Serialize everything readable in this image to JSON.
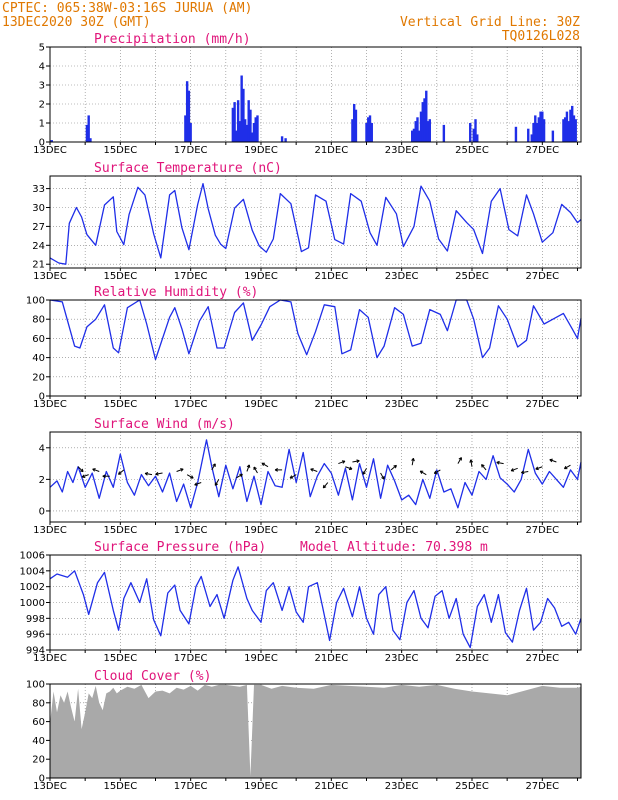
{
  "header": {
    "line1": "CPTEC:  065:38W-03:16S  JURUA (AM)",
    "line2": "13DEC2020 30Z (GMT)",
    "right1": "Vertical Grid Line: 30Z",
    "right2": "TQ0126L028"
  },
  "colors": {
    "header": "#e07800",
    "title": "#e0147a",
    "line": "#1f2ee8",
    "cloud": "#a9a9a9",
    "grid": "#7f7f7f"
  },
  "chart_data": [
    {
      "type": "bar",
      "title": "Precipitation (mm/h)",
      "ylim": [
        0,
        5
      ],
      "yticks": [
        "0",
        "1",
        "2",
        "3",
        "4",
        "5"
      ],
      "xticks": [
        "13DEC",
        "15DEC",
        "17DEC",
        "19DEC",
        "21DEC",
        "23DEC",
        "25DEC",
        "27DEC"
      ],
      "x_start_day": 13,
      "x_end_day": 28.1,
      "x": [
        13.05,
        14.05,
        14.1,
        14.15,
        16.85,
        16.9,
        16.95,
        17.0,
        18.2,
        18.25,
        18.3,
        18.35,
        18.4,
        18.45,
        18.5,
        18.55,
        18.6,
        18.65,
        18.7,
        18.75,
        18.8,
        18.85,
        18.9,
        19.6,
        19.7,
        21.6,
        21.65,
        21.7,
        22.0,
        22.05,
        22.1,
        22.15,
        23.3,
        23.35,
        23.4,
        23.45,
        23.5,
        23.55,
        23.6,
        23.65,
        23.7,
        23.75,
        23.8,
        24.2,
        24.95,
        25.05,
        25.1,
        25.15,
        26.25,
        26.6,
        26.7,
        26.75,
        26.8,
        26.85,
        26.9,
        26.95,
        27.0,
        27.05,
        27.3,
        27.6,
        27.65,
        27.7,
        27.75,
        27.8,
        27.85,
        27.9,
        27.95
      ],
      "values": [
        0.1,
        0.9,
        1.4,
        0.2,
        1.4,
        3.2,
        2.7,
        1.0,
        1.8,
        2.1,
        0.6,
        2.2,
        1.1,
        3.5,
        2.8,
        1.2,
        0.9,
        2.2,
        1.7,
        0.5,
        1.0,
        1.3,
        1.4,
        0.3,
        0.2,
        1.2,
        2.0,
        1.7,
        1.0,
        1.3,
        1.4,
        1.0,
        0.6,
        0.7,
        1.1,
        1.3,
        0.6,
        1.6,
        2.1,
        2.3,
        2.7,
        1.1,
        1.2,
        0.9,
        1.0,
        0.7,
        1.2,
        0.4,
        0.8,
        0.7,
        0.4,
        1.0,
        1.4,
        1.0,
        1.3,
        1.6,
        1.6,
        1.2,
        0.6,
        1.2,
        1.3,
        1.6,
        1.1,
        1.7,
        1.9,
        1.4,
        1.2
      ]
    },
    {
      "type": "line",
      "title": "Surface Temperature (nC)",
      "ylim": [
        20.4,
        35
      ],
      "yticks": [
        "21",
        "24",
        "27",
        "30",
        "33"
      ],
      "xticks": [
        "13DEC",
        "15DEC",
        "17DEC",
        "19DEC",
        "21DEC",
        "23DEC",
        "25DEC",
        "27DEC"
      ],
      "x_start_day": 13,
      "x_end_day": 28.1,
      "x": [
        13.0,
        13.25,
        13.45,
        13.55,
        13.75,
        13.9,
        14.05,
        14.3,
        14.55,
        14.8,
        14.9,
        15.1,
        15.25,
        15.5,
        15.7,
        15.95,
        16.15,
        16.4,
        16.55,
        16.75,
        16.95,
        17.2,
        17.35,
        17.5,
        17.7,
        17.85,
        18.0,
        18.25,
        18.5,
        18.75,
        18.95,
        19.15,
        19.35,
        19.55,
        19.85,
        20.15,
        20.35,
        20.55,
        20.85,
        21.1,
        21.35,
        21.55,
        21.85,
        22.1,
        22.3,
        22.55,
        22.85,
        23.05,
        23.35,
        23.55,
        23.8,
        24.05,
        24.3,
        24.55,
        24.85,
        25.05,
        25.3,
        25.55,
        25.8,
        26.05,
        26.3,
        26.55,
        26.75,
        27.0,
        27.3,
        27.55,
        27.8,
        28.0,
        28.1
      ],
      "values": [
        22.0,
        21.2,
        21.0,
        27.5,
        30.0,
        28.5,
        25.7,
        24.0,
        30.4,
        31.7,
        26.2,
        24.1,
        28.9,
        33.2,
        32.0,
        25.8,
        22.0,
        32.0,
        32.7,
        26.8,
        23.3,
        30.5,
        33.8,
        29.8,
        25.6,
        24.2,
        23.5,
        29.9,
        31.3,
        26.4,
        23.9,
        22.9,
        25.0,
        32.2,
        30.6,
        23.0,
        23.6,
        32.0,
        31.0,
        24.9,
        24.2,
        32.2,
        31.0,
        26.0,
        24.0,
        31.6,
        29.0,
        23.8,
        27.0,
        33.4,
        31.0,
        25.0,
        23.1,
        29.5,
        27.6,
        26.5,
        22.7,
        31.0,
        33.0,
        26.5,
        25.5,
        32.0,
        29.0,
        24.5,
        26.0,
        30.5,
        29.2,
        27.6,
        28.1
      ]
    },
    {
      "type": "line",
      "title": "Relative Humidity (%)",
      "ylim": [
        0,
        100
      ],
      "yticks": [
        "0",
        "20",
        "40",
        "60",
        "80",
        "100"
      ],
      "xticks": [
        "13DEC",
        "15DEC",
        "17DEC",
        "19DEC",
        "21DEC",
        "23DEC",
        "25DEC",
        "27DEC"
      ],
      "x_start_day": 13,
      "x_end_day": 28.1,
      "x": [
        13.0,
        13.35,
        13.7,
        13.85,
        14.05,
        14.3,
        14.55,
        14.8,
        14.95,
        15.2,
        15.55,
        15.75,
        16.0,
        16.4,
        16.55,
        16.75,
        16.95,
        17.25,
        17.5,
        17.75,
        17.95,
        18.25,
        18.5,
        18.75,
        19.0,
        19.25,
        19.55,
        19.85,
        20.05,
        20.3,
        20.55,
        20.8,
        21.1,
        21.3,
        21.55,
        21.8,
        22.05,
        22.3,
        22.5,
        22.8,
        23.05,
        23.3,
        23.55,
        23.8,
        24.1,
        24.3,
        24.55,
        24.85,
        25.05,
        25.3,
        25.5,
        25.75,
        26.0,
        26.3,
        26.55,
        26.75,
        27.05,
        27.3,
        27.6,
        27.85,
        28.0,
        28.1
      ],
      "values": [
        100,
        98,
        52,
        50,
        72,
        80,
        95,
        50,
        45,
        92,
        100,
        75,
        38,
        82,
        92,
        70,
        44,
        78,
        93,
        50,
        50,
        87,
        97,
        58,
        74,
        93,
        100,
        98,
        65,
        43,
        67,
        95,
        93,
        44,
        48,
        90,
        82,
        40,
        52,
        92,
        85,
        52,
        55,
        90,
        85,
        68,
        100,
        100,
        80,
        40,
        50,
        94,
        80,
        51,
        58,
        94,
        75,
        80,
        86,
        70,
        60,
        81
      ]
    },
    {
      "type": "line",
      "title": "Surface Wind (m/s)",
      "ylim": [
        -0.7,
        5
      ],
      "yticks": [
        "0",
        "2",
        "4"
      ],
      "xticks": [
        "13DEC",
        "15DEC",
        "17DEC",
        "19DEC",
        "21DEC",
        "23DEC",
        "25DEC",
        "27DEC"
      ],
      "x_start_day": 13,
      "x_end_day": 28.1,
      "x": [
        13.0,
        13.2,
        13.35,
        13.5,
        13.65,
        13.8,
        14.0,
        14.2,
        14.4,
        14.6,
        14.8,
        15.0,
        15.2,
        15.4,
        15.6,
        15.8,
        16.0,
        16.2,
        16.4,
        16.6,
        16.8,
        17.0,
        17.2,
        17.45,
        17.6,
        17.8,
        18.0,
        18.2,
        18.4,
        18.6,
        18.8,
        19.0,
        19.2,
        19.4,
        19.6,
        19.8,
        20.0,
        20.2,
        20.4,
        20.6,
        20.8,
        21.0,
        21.2,
        21.4,
        21.6,
        21.8,
        22.0,
        22.2,
        22.4,
        22.6,
        22.8,
        23.0,
        23.2,
        23.4,
        23.6,
        23.8,
        24.0,
        24.2,
        24.4,
        24.6,
        24.8,
        25.0,
        25.2,
        25.4,
        25.6,
        25.8,
        26.0,
        26.2,
        26.4,
        26.6,
        26.8,
        27.0,
        27.2,
        27.4,
        27.6,
        27.8,
        28.0,
        28.1
      ],
      "values": [
        1.5,
        1.9,
        1.2,
        2.5,
        1.8,
        2.8,
        1.5,
        2.4,
        0.8,
        2.5,
        1.5,
        3.6,
        1.8,
        1.0,
        2.3,
        1.6,
        2.2,
        1.2,
        2.4,
        0.6,
        1.7,
        0.2,
        1.8,
        4.5,
        2.8,
        0.9,
        2.9,
        1.4,
        2.8,
        0.6,
        2.2,
        0.4,
        2.5,
        1.6,
        1.5,
        3.9,
        1.8,
        3.7,
        0.9,
        2.2,
        3.0,
        2.4,
        1.0,
        2.7,
        0.7,
        3.0,
        1.5,
        3.3,
        0.8,
        2.9,
        1.9,
        0.7,
        1.0,
        0.4,
        2.0,
        0.8,
        2.6,
        1.2,
        1.4,
        0.2,
        1.8,
        1.0,
        2.5,
        2.0,
        3.5,
        2.1,
        1.7,
        1.2,
        2.0,
        3.9,
        2.4,
        1.7,
        2.5,
        2.0,
        1.5,
        2.6,
        2.0,
        3.1
      ]
    },
    {
      "type": "line",
      "title": "Surface Pressure (hPa)",
      "annotation": "Model Altitude: 70.398 m",
      "ylim": [
        994,
        1006
      ],
      "yticks": [
        "994",
        "996",
        "998",
        "1000",
        "1002",
        "1004",
        "1006"
      ],
      "xticks": [
        "13DEC",
        "15DEC",
        "17DEC",
        "19DEC",
        "21DEC",
        "23DEC",
        "25DEC",
        "27DEC"
      ],
      "x_start_day": 13,
      "x_end_day": 28.1,
      "x": [
        13.0,
        13.2,
        13.5,
        13.7,
        13.95,
        14.1,
        14.35,
        14.55,
        14.8,
        14.95,
        15.1,
        15.3,
        15.55,
        15.75,
        15.95,
        16.15,
        16.35,
        16.55,
        16.7,
        16.95,
        17.15,
        17.3,
        17.55,
        17.75,
        17.95,
        18.2,
        18.35,
        18.6,
        18.75,
        19.0,
        19.15,
        19.35,
        19.6,
        19.8,
        20.0,
        20.2,
        20.35,
        20.6,
        20.75,
        20.95,
        21.15,
        21.35,
        21.6,
        21.8,
        22.0,
        22.2,
        22.35,
        22.55,
        22.75,
        22.95,
        23.15,
        23.35,
        23.55,
        23.75,
        23.95,
        24.15,
        24.35,
        24.55,
        24.75,
        24.95,
        25.15,
        25.35,
        25.55,
        25.75,
        25.95,
        26.15,
        26.35,
        26.55,
        26.75,
        26.95,
        27.15,
        27.35,
        27.55,
        27.75,
        27.95,
        28.1
      ],
      "values": [
        1003.0,
        1003.6,
        1003.2,
        1004.0,
        1001.0,
        998.5,
        1002.5,
        1003.8,
        999.0,
        996.5,
        1000.5,
        1002.5,
        1000.0,
        1003.0,
        997.8,
        995.8,
        1001.2,
        1002.2,
        999.0,
        997.3,
        1002.0,
        1003.3,
        999.5,
        1001.0,
        998.0,
        1002.8,
        1004.5,
        1000.5,
        999.0,
        997.5,
        1001.5,
        1002.5,
        999.0,
        1002.0,
        998.8,
        997.5,
        1002.0,
        1002.5,
        999.5,
        995.2,
        1000.0,
        1001.8,
        998.2,
        1002.0,
        998.0,
        996.0,
        1001.0,
        1002.0,
        996.5,
        995.3,
        1000.0,
        1001.5,
        998.0,
        996.8,
        1000.8,
        1001.5,
        998.0,
        1000.5,
        996.0,
        994.3,
        999.5,
        1001.0,
        997.5,
        1001.0,
        996.2,
        995.0,
        999.0,
        1001.8,
        996.5,
        997.5,
        1000.5,
        999.3,
        997.0,
        997.5,
        996.0,
        998.0
      ]
    },
    {
      "type": "area",
      "title": "Cloud Cover (%)",
      "ylim": [
        0,
        100
      ],
      "yticks": [
        "0",
        "20",
        "40",
        "60",
        "80",
        "100"
      ],
      "xticks": [
        "13DEC",
        "15DEC",
        "17DEC",
        "19DEC",
        "21DEC",
        "23DEC",
        "25DEC",
        "27DEC"
      ],
      "x_start_day": 13,
      "x_end_day": 28.1,
      "x": [
        13.0,
        13.1,
        13.2,
        13.3,
        13.4,
        13.5,
        13.6,
        13.7,
        13.8,
        13.9,
        14.0,
        14.1,
        14.2,
        14.3,
        14.4,
        14.5,
        14.6,
        14.7,
        14.8,
        14.9,
        15.0,
        15.2,
        15.4,
        15.6,
        15.8,
        16.0,
        16.2,
        16.4,
        16.6,
        16.8,
        17.0,
        17.2,
        17.4,
        17.6,
        17.8,
        18.0,
        18.2,
        18.4,
        18.6,
        18.7,
        18.8,
        19.0,
        19.3,
        19.6,
        20.0,
        20.5,
        21.0,
        21.5,
        22.0,
        22.5,
        23.0,
        23.5,
        24.0,
        24.5,
        25.0,
        25.5,
        26.0,
        26.5,
        27.0,
        27.5,
        28.0,
        28.1
      ],
      "values": [
        58,
        92,
        70,
        88,
        80,
        92,
        75,
        60,
        95,
        52,
        70,
        90,
        85,
        98,
        80,
        72,
        90,
        92,
        96,
        90,
        93,
        97,
        95,
        99,
        85,
        92,
        93,
        90,
        96,
        94,
        98,
        93,
        99,
        97,
        99,
        99,
        98,
        97,
        99,
        2,
        99,
        99,
        95,
        98,
        96,
        95,
        99,
        98,
        97,
        96,
        99,
        97,
        99,
        95,
        92,
        90,
        88,
        93,
        98,
        96,
        96,
        97
      ]
    }
  ]
}
